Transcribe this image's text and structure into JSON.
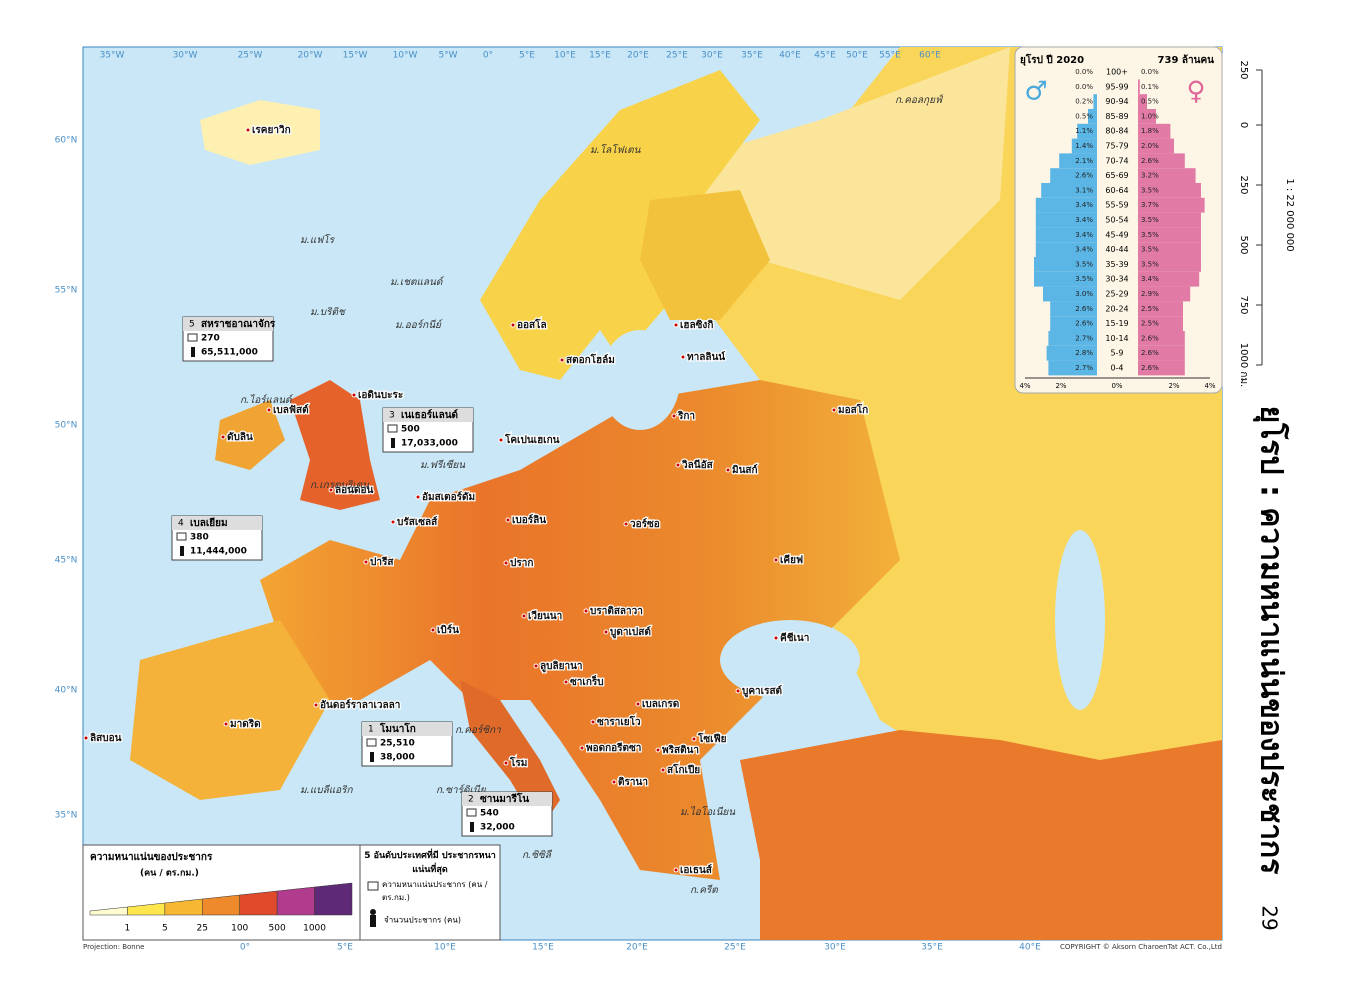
{
  "title": "ยุโรป : ความหนาแน่นของประชากร",
  "page_number": "29",
  "projection": "Projection: Bonne",
  "copyright": "COPYRIGHT © Aksorn CharoenTat ACT. Co.,Ltd",
  "top_longitudes": [
    "35°W",
    "30°W",
    "25°W",
    "20°W",
    "15°W",
    "10°W",
    "5°W",
    "0°",
    "5°E",
    "10°E",
    "15°E",
    "20°E",
    "25°E",
    "30°E",
    "35°E",
    "40°E",
    "45°E",
    "50°E",
    "55°E",
    "60°E"
  ],
  "bottom_longitudes": [
    "0°",
    "5°E",
    "10°E",
    "15°E",
    "20°E",
    "25°E",
    "30°E",
    "35°E",
    "40°E"
  ],
  "latitudes": [
    "60°N",
    "55°N",
    "50°N",
    "45°N",
    "40°N",
    "35°N"
  ],
  "scale": {
    "ratio": "1 : 22 000 000",
    "ticks": [
      "250",
      "0",
      "250",
      "500",
      "750",
      "1000 กม."
    ]
  },
  "legend": {
    "title": "ความหนาแน่นของประชากร",
    "unit": "(คน / ตร.กม.)",
    "classes": [
      "1",
      "5",
      "25",
      "100",
      "500",
      "1000"
    ],
    "colors": [
      "#fffbd0",
      "#fde74c",
      "#f6b733",
      "#ee8a2c",
      "#df4a2a",
      "#b13c8e",
      "#5e2a78"
    ]
  },
  "top5": {
    "title": "5 อันดับประเทศที่มี ประชากรหนาแน่นที่สุด",
    "density_label": "ความหนาแน่นประชากร (คน / ตร.กม.)",
    "population_label": "จำนวนประชากร (คน)",
    "countries": [
      {
        "rank": "1",
        "name": "โมนาโก",
        "density": "25,510",
        "population": "38,000"
      },
      {
        "rank": "2",
        "name": "ซานมารีโน",
        "density": "540",
        "population": "32,000"
      },
      {
        "rank": "3",
        "name": "เนเธอร์แลนด์",
        "density": "500",
        "population": "17,033,000"
      },
      {
        "rank": "4",
        "name": "เบลเยียม",
        "density": "380",
        "population": "11,444,000"
      },
      {
        "rank": "5",
        "name": "สหราชอาณาจักร",
        "density": "270",
        "population": "65,511,000"
      }
    ]
  },
  "pyramid": {
    "title": "ยุโรป ปี 2020",
    "total": "739 ล้านคน",
    "ticks": [
      "4%",
      "2%",
      "0%",
      "2%",
      "4%"
    ],
    "ages": [
      "100+",
      "95-99",
      "90-94",
      "85-89",
      "80-84",
      "75-79",
      "70-74",
      "65-69",
      "60-64",
      "55-59",
      "50-54",
      "45-49",
      "40-44",
      "35-39",
      "30-34",
      "25-29",
      "20-24",
      "15-19",
      "10-14",
      "5-9",
      "0-4"
    ],
    "male": [
      0.0,
      0.0,
      0.2,
      0.5,
      1.1,
      1.4,
      2.1,
      2.6,
      3.1,
      3.4,
      3.4,
      3.4,
      3.4,
      3.5,
      3.5,
      3.0,
      2.6,
      2.6,
      2.7,
      2.8,
      2.7
    ],
    "male_labels": [
      "0.0%",
      "0.0%",
      "0.2%",
      "0.5%",
      "1.1%",
      "1.4%",
      "2.1%",
      "2.6%",
      "3.1%",
      "3.4%",
      "3.4%",
      "3.4%",
      "3.4%",
      "3.5%",
      "3.5%",
      "3.0%",
      "2.6%",
      "2.6%",
      "2.7%",
      "2.8%",
      "2.7%"
    ],
    "female": [
      0.0,
      0.1,
      0.5,
      1.0,
      1.8,
      2.0,
      2.6,
      3.2,
      3.5,
      3.7,
      3.5,
      3.5,
      3.5,
      3.5,
      3.4,
      2.9,
      2.5,
      2.5,
      2.6,
      2.6,
      2.6
    ],
    "female_labels": [
      "0.0%",
      "0.1%",
      "0.5%",
      "1.0%",
      "1.8%",
      "2.0%",
      "2.6%",
      "3.2%",
      "3.5%",
      "3.7%",
      "3.5%",
      "3.5%",
      "3.5%",
      "3.5%",
      "3.4%",
      "2.9%",
      "2.5%",
      "2.5%",
      "2.6%",
      "2.6%",
      "2.6%"
    ]
  },
  "places": [
    "เรคยาวิก",
    "ดับลิน",
    "เบลฟัสต์",
    "เอดินบะระ",
    "ลอนดอน",
    "ปารีส",
    "มาดริด",
    "ลิสบอน",
    "อันดอร์ราลาเวลลา",
    "อัมสเตอร์ดัม",
    "บรัสเซลส์",
    "เบิร์น",
    "เบอร์ลิน",
    "โคเปนเฮเกน",
    "ออสโล",
    "สตอกโฮล์ม",
    "เฮลซิงกิ",
    "ทาลลินน์",
    "ริกา",
    "วิลนีอัส",
    "มินสก์",
    "มอสโก",
    "วอร์ซอ",
    "ปราก",
    "เวียนนา",
    "บราติสลาวา",
    "บูดาเปสต์",
    "ลูบลิยานา",
    "ซาเกร็บ",
    "เคียฟ",
    "คีชีเนา",
    "บูคาเรสต์",
    "เบลเกรด",
    "ซาราเยโว",
    "พอดกอรีตซา",
    "พริสตินา",
    "สโกเปีย",
    "โซเฟีย",
    "ติรานา",
    "เอเธนส์",
    "โรม"
  ],
  "seas": [
    "ก.คอลกุยฟ์",
    "ม.โลโฟเตน",
    "ม.แฟโร",
    "ม.เชตแลนด์",
    "ม.ออร์กนีย์",
    "ม.บริติช",
    "ก.ไอร์แลนด์",
    "ก.เกรตบริเตน",
    "ม.ฟรีเซียน",
    "ก.คอร์ซิกา",
    "ก.ซาร์ดิเนีย",
    "ม.แบลีแอริก",
    "ก.ซิซิลี",
    "ม.ไอโอเนียน",
    "ก.ครีต"
  ]
}
